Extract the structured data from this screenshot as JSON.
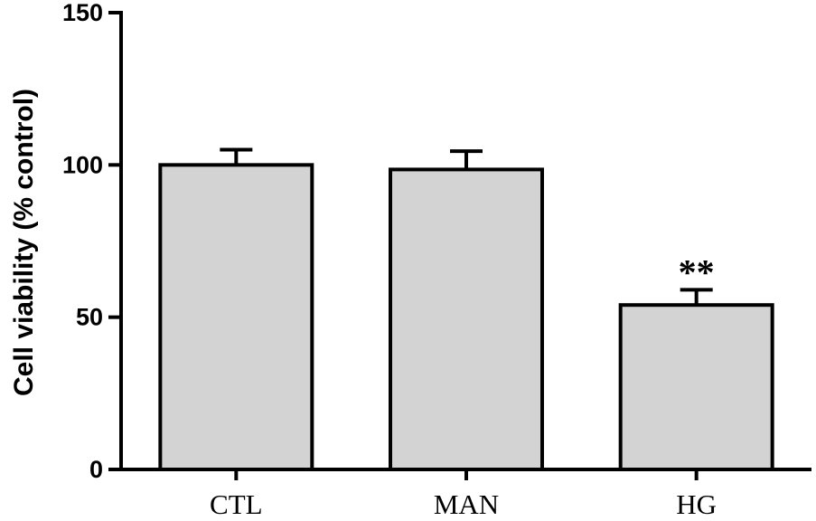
{
  "chart_data": {
    "type": "bar",
    "title": "",
    "xlabel": "",
    "ylabel": "Cell viability (% control)",
    "categories": [
      "CTL",
      "MAN",
      "HG"
    ],
    "values": [
      100,
      98.5,
      54
    ],
    "errors": [
      5,
      6,
      5
    ],
    "annotations": [
      "",
      "",
      "**"
    ],
    "ylim": [
      0,
      150
    ],
    "yticks": [
      0,
      50,
      100,
      150
    ],
    "grid": false,
    "legend": "none",
    "bar_color": "#d3d3d3",
    "edge_color": "#000000"
  }
}
